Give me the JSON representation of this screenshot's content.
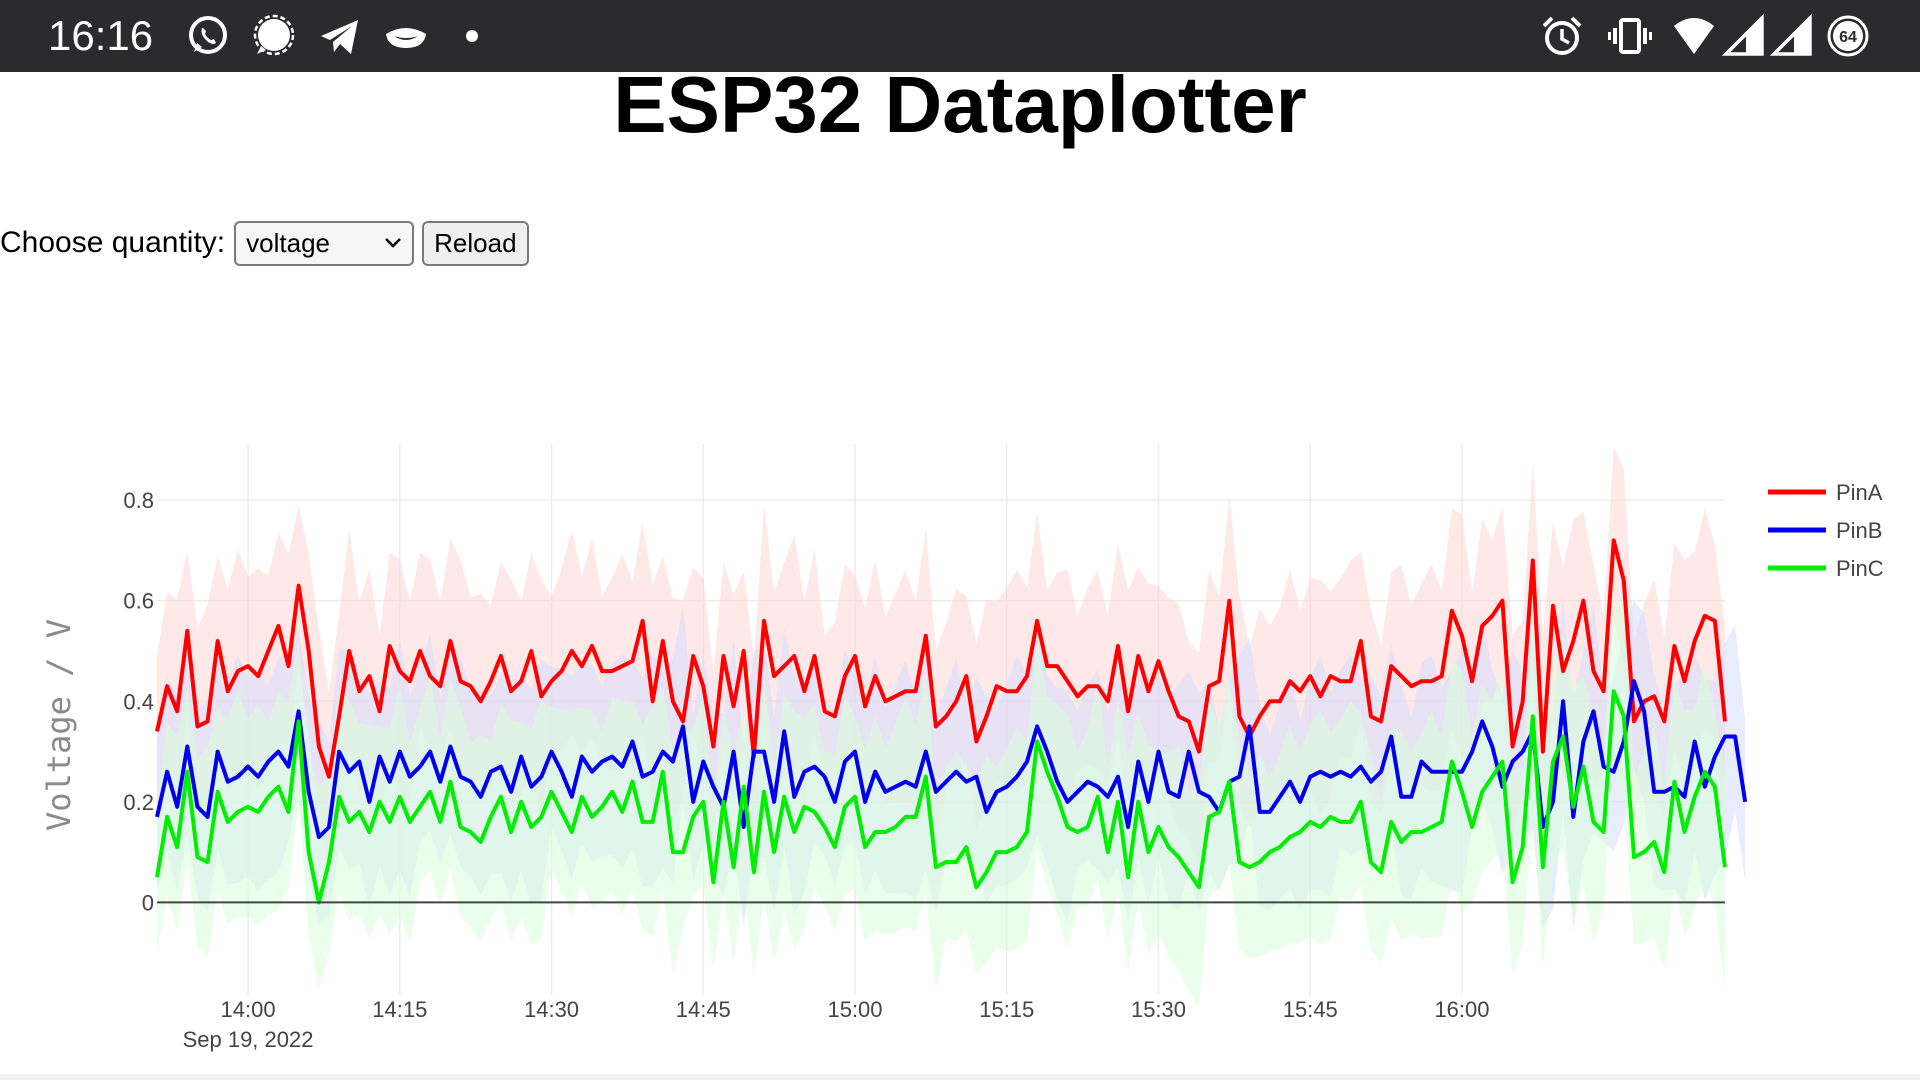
{
  "status_bar": {
    "time": "16:16",
    "battery_level": "64",
    "left_icons": [
      "whatsapp-icon",
      "signal-icon",
      "telegram-icon",
      "mask-icon",
      "dot-icon"
    ],
    "right_icons": [
      "alarm-icon",
      "vibrate-icon",
      "wifi-icon",
      "cell-signal-icon",
      "cell-signal-icon",
      "battery-icon"
    ]
  },
  "page": {
    "title": "ESP32 Dataplotter"
  },
  "controls": {
    "label": "Choose quantity:",
    "select_value": "voltage",
    "reload_label": "Reload"
  },
  "colors": {
    "PinA": "#ff0000",
    "PinB": "#0000ee",
    "PinC": "#00ee00"
  },
  "chart_data": {
    "type": "line",
    "ylabel": "Voltage / V",
    "xlabel": "",
    "x_start": "2022-09-19 13:51",
    "x_interval_minutes": 1,
    "x_ticks": [
      "14:00",
      "14:15",
      "14:30",
      "14:45",
      "15:00",
      "15:15",
      "15:30",
      "15:45",
      "16:00"
    ],
    "x_tick_times": [
      "2022-09-19 14:00",
      "2022-09-19 14:15",
      "2022-09-19 14:30",
      "2022-09-19 14:45",
      "2022-09-19 15:00",
      "2022-09-19 15:15",
      "2022-09-19 15:30",
      "2022-09-19 15:45",
      "2022-09-19 16:00"
    ],
    "x_date_label": "Sep 19, 2022",
    "y_ticks": [
      "0",
      "0.2",
      "0.4",
      "0.6",
      "0.8"
    ],
    "ylim": [
      -0.055,
      0.88
    ],
    "grid": true,
    "legend_position": "top-right",
    "band_halfwidth": 0.15,
    "series": [
      {
        "name": "PinA",
        "color": "#ff0000",
        "band_color": "#ffd6d6",
        "values": [
          0.34,
          0.43,
          0.38,
          0.54,
          0.35,
          0.36,
          0.52,
          0.42,
          0.46,
          0.47,
          0.45,
          0.5,
          0.55,
          0.47,
          0.63,
          0.5,
          0.31,
          0.25,
          0.37,
          0.5,
          0.42,
          0.45,
          0.38,
          0.51,
          0.46,
          0.44,
          0.5,
          0.45,
          0.43,
          0.52,
          0.44,
          0.43,
          0.4,
          0.44,
          0.49,
          0.42,
          0.44,
          0.5,
          0.41,
          0.44,
          0.46,
          0.5,
          0.47,
          0.51,
          0.46,
          0.46,
          0.47,
          0.48,
          0.56,
          0.4,
          0.52,
          0.4,
          0.36,
          0.49,
          0.43,
          0.31,
          0.49,
          0.39,
          0.5,
          0.29,
          0.56,
          0.45,
          0.47,
          0.49,
          0.42,
          0.49,
          0.38,
          0.37,
          0.45,
          0.49,
          0.39,
          0.45,
          0.4,
          0.41,
          0.42,
          0.42,
          0.53,
          0.35,
          0.37,
          0.4,
          0.45,
          0.32,
          0.37,
          0.43,
          0.42,
          0.42,
          0.45,
          0.56,
          0.47,
          0.47,
          0.44,
          0.41,
          0.43,
          0.43,
          0.4,
          0.51,
          0.38,
          0.49,
          0.42,
          0.48,
          0.42,
          0.37,
          0.36,
          0.3,
          0.43,
          0.44,
          0.6,
          0.37,
          0.33,
          0.37,
          0.4,
          0.4,
          0.44,
          0.42,
          0.45,
          0.41,
          0.45,
          0.44,
          0.44,
          0.52,
          0.37,
          0.36,
          0.47,
          0.45,
          0.43,
          0.44,
          0.44,
          0.45,
          0.58,
          0.53,
          0.44,
          0.55,
          0.57,
          0.6,
          0.31,
          0.4,
          0.68,
          0.3,
          0.59,
          0.46,
          0.52,
          0.6,
          0.46,
          0.42,
          0.72,
          0.64,
          0.36,
          0.4,
          0.41,
          0.36,
          0.51,
          0.44,
          0.52,
          0.57,
          0.56,
          0.36
        ]
      },
      {
        "name": "PinB",
        "color": "#0000ee",
        "band_color": "#d6dcff",
        "values": [
          0.17,
          0.26,
          0.19,
          0.31,
          0.19,
          0.17,
          0.3,
          0.24,
          0.25,
          0.27,
          0.25,
          0.28,
          0.3,
          0.27,
          0.38,
          0.22,
          0.13,
          0.15,
          0.3,
          0.26,
          0.28,
          0.2,
          0.29,
          0.24,
          0.3,
          0.25,
          0.27,
          0.3,
          0.24,
          0.31,
          0.25,
          0.24,
          0.21,
          0.26,
          0.27,
          0.22,
          0.29,
          0.23,
          0.25,
          0.3,
          0.26,
          0.21,
          0.29,
          0.26,
          0.28,
          0.29,
          0.27,
          0.32,
          0.25,
          0.26,
          0.3,
          0.28,
          0.35,
          0.2,
          0.28,
          0.23,
          0.19,
          0.3,
          0.15,
          0.3,
          0.3,
          0.2,
          0.34,
          0.21,
          0.26,
          0.27,
          0.25,
          0.2,
          0.28,
          0.3,
          0.2,
          0.26,
          0.22,
          0.23,
          0.24,
          0.23,
          0.3,
          0.22,
          0.24,
          0.26,
          0.24,
          0.25,
          0.18,
          0.22,
          0.23,
          0.25,
          0.28,
          0.35,
          0.3,
          0.24,
          0.2,
          0.22,
          0.24,
          0.23,
          0.21,
          0.25,
          0.15,
          0.28,
          0.2,
          0.3,
          0.22,
          0.21,
          0.3,
          0.22,
          0.21,
          0.18,
          0.24,
          0.25,
          0.35,
          0.18,
          0.18,
          0.21,
          0.24,
          0.2,
          0.25,
          0.26,
          0.25,
          0.26,
          0.25,
          0.27,
          0.24,
          0.26,
          0.33,
          0.21,
          0.21,
          0.28,
          0.26,
          0.26,
          0.26,
          0.26,
          0.3,
          0.36,
          0.31,
          0.23,
          0.28,
          0.3,
          0.34,
          0.15,
          0.2,
          0.4,
          0.17,
          0.32,
          0.38,
          0.27,
          0.26,
          0.32,
          0.44,
          0.38,
          0.22,
          0.22,
          0.23,
          0.21,
          0.32,
          0.23,
          0.29,
          0.33,
          0.33,
          0.2
        ]
      },
      {
        "name": "PinC",
        "color": "#00ee00",
        "band_color": "#d9ffd9",
        "values": [
          0.05,
          0.17,
          0.11,
          0.26,
          0.09,
          0.08,
          0.22,
          0.16,
          0.18,
          0.19,
          0.18,
          0.21,
          0.23,
          0.18,
          0.36,
          0.1,
          0.0,
          0.08,
          0.21,
          0.16,
          0.18,
          0.14,
          0.2,
          0.16,
          0.21,
          0.16,
          0.19,
          0.22,
          0.16,
          0.24,
          0.15,
          0.14,
          0.12,
          0.17,
          0.21,
          0.14,
          0.2,
          0.15,
          0.17,
          0.22,
          0.18,
          0.14,
          0.21,
          0.17,
          0.19,
          0.22,
          0.18,
          0.24,
          0.16,
          0.16,
          0.26,
          0.1,
          0.1,
          0.17,
          0.2,
          0.04,
          0.2,
          0.07,
          0.23,
          0.06,
          0.22,
          0.1,
          0.21,
          0.14,
          0.19,
          0.18,
          0.15,
          0.11,
          0.19,
          0.21,
          0.11,
          0.14,
          0.14,
          0.15,
          0.17,
          0.17,
          0.25,
          0.07,
          0.08,
          0.08,
          0.11,
          0.03,
          0.06,
          0.1,
          0.1,
          0.11,
          0.14,
          0.32,
          0.26,
          0.21,
          0.15,
          0.14,
          0.15,
          0.21,
          0.1,
          0.2,
          0.05,
          0.2,
          0.1,
          0.15,
          0.11,
          0.09,
          0.06,
          0.03,
          0.17,
          0.18,
          0.24,
          0.08,
          0.07,
          0.08,
          0.1,
          0.11,
          0.13,
          0.14,
          0.16,
          0.15,
          0.17,
          0.16,
          0.16,
          0.2,
          0.08,
          0.06,
          0.16,
          0.12,
          0.14,
          0.14,
          0.15,
          0.16,
          0.28,
          0.22,
          0.15,
          0.22,
          0.25,
          0.28,
          0.04,
          0.11,
          0.37,
          0.07,
          0.28,
          0.33,
          0.19,
          0.27,
          0.16,
          0.14,
          0.42,
          0.37,
          0.09,
          0.1,
          0.12,
          0.06,
          0.24,
          0.14,
          0.21,
          0.26,
          0.23,
          0.07
        ]
      }
    ]
  }
}
